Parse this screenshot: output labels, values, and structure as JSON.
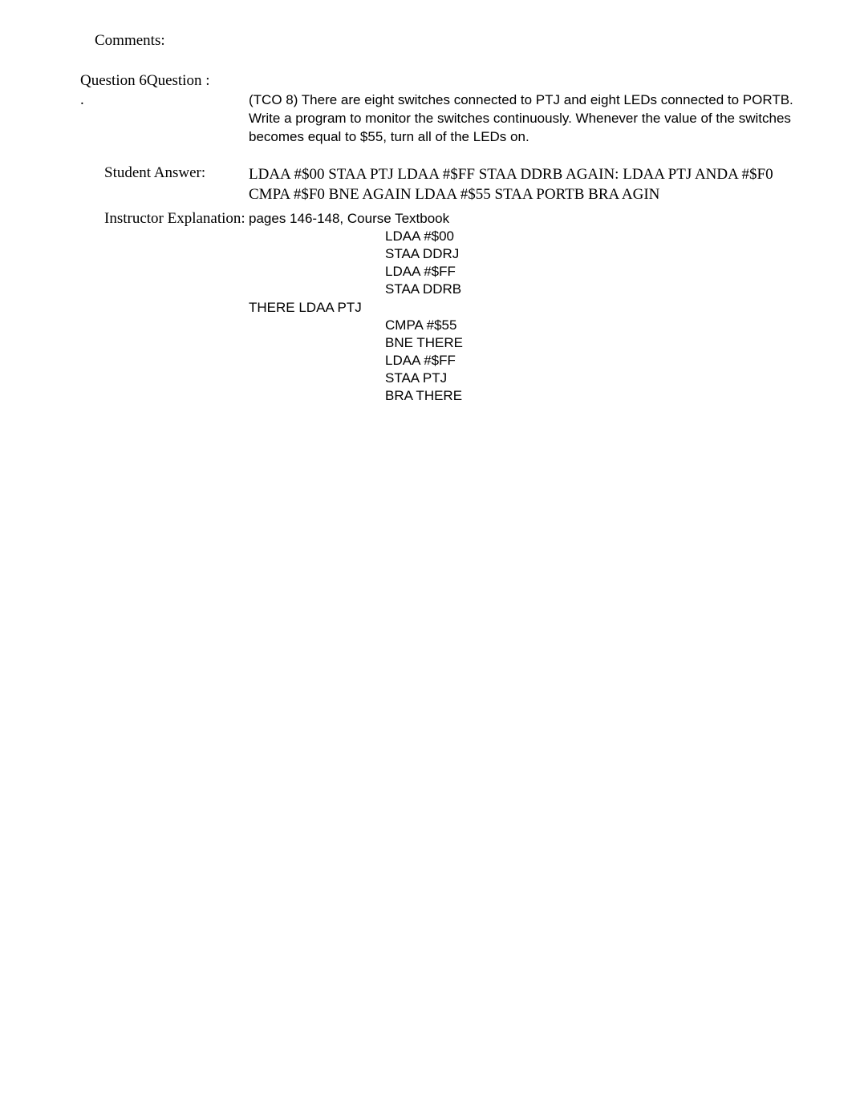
{
  "comments_label": "Comments:",
  "question_number": "Question 6",
  "question_label": "Question :",
  "dot": ".",
  "question_text": "(TCO 8) There are eight switches connected to PTJ and eight LEDs connected to PORTB. Write a program to monitor the switches continuously. Whenever the value of the switches becomes equal to $55, turn all of the LEDs on.",
  "student_answer_label": "Student Answer:",
  "student_answer_text": "LDAA #$00 STAA PTJ LDAA #$FF STAA DDRB AGAIN: LDAA PTJ ANDA #$F0 CMPA #$F0 BNE AGAIN LDAA #$55 STAA PORTB BRA AGIN",
  "instructor_label": "Instructor Explanation:",
  "instructor_ref": "pages 146-148, Course Textbook",
  "code": {
    "l1": "LDAA #$00",
    "l2": "STAA DDRJ",
    "l3": "LDAA #$FF",
    "l4": "STAA DDRB",
    "l5": "THERE LDAA PTJ",
    "l6": "CMPA #$55",
    "l7": "BNE THERE",
    "l8": "LDAA #$FF",
    "l9": "STAA PTJ",
    "l10": "BRA THERE"
  }
}
